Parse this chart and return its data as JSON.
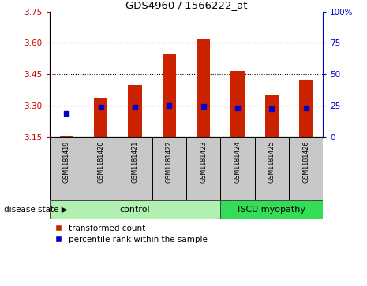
{
  "title": "GDS4960 / 1566222_at",
  "samples": [
    "GSM1181419",
    "GSM1181420",
    "GSM1181421",
    "GSM1181422",
    "GSM1181423",
    "GSM1181424",
    "GSM1181425",
    "GSM1181426"
  ],
  "red_values": [
    3.16,
    3.34,
    3.4,
    3.55,
    3.62,
    3.465,
    3.35,
    3.425
  ],
  "blue_values": [
    3.262,
    3.292,
    3.292,
    3.302,
    3.298,
    3.29,
    3.288,
    3.29
  ],
  "ylim_left": [
    3.15,
    3.75
  ],
  "ylim_right": [
    0,
    100
  ],
  "yticks_left": [
    3.15,
    3.3,
    3.45,
    3.6,
    3.75
  ],
  "yticks_right": [
    0,
    25,
    50,
    75,
    100
  ],
  "ytick_right_labels": [
    "0",
    "25",
    "50",
    "75",
    "100%"
  ],
  "left_axis_color": "#cc0000",
  "right_axis_color": "#0000cc",
  "bar_color": "#cc2200",
  "dot_color": "#0000cc",
  "control_label": "control",
  "iscu_label": "ISCU myopathy",
  "control_bg": "#b0f0b0",
  "iscu_bg": "#33dd55",
  "sample_bg": "#c8c8c8",
  "legend_red_label": "transformed count",
  "legend_blue_label": "percentile rank within the sample",
  "disease_state_label": "disease state",
  "baseline": 3.15,
  "bar_width": 0.4,
  "grid_yticks": [
    3.3,
    3.45,
    3.6
  ]
}
